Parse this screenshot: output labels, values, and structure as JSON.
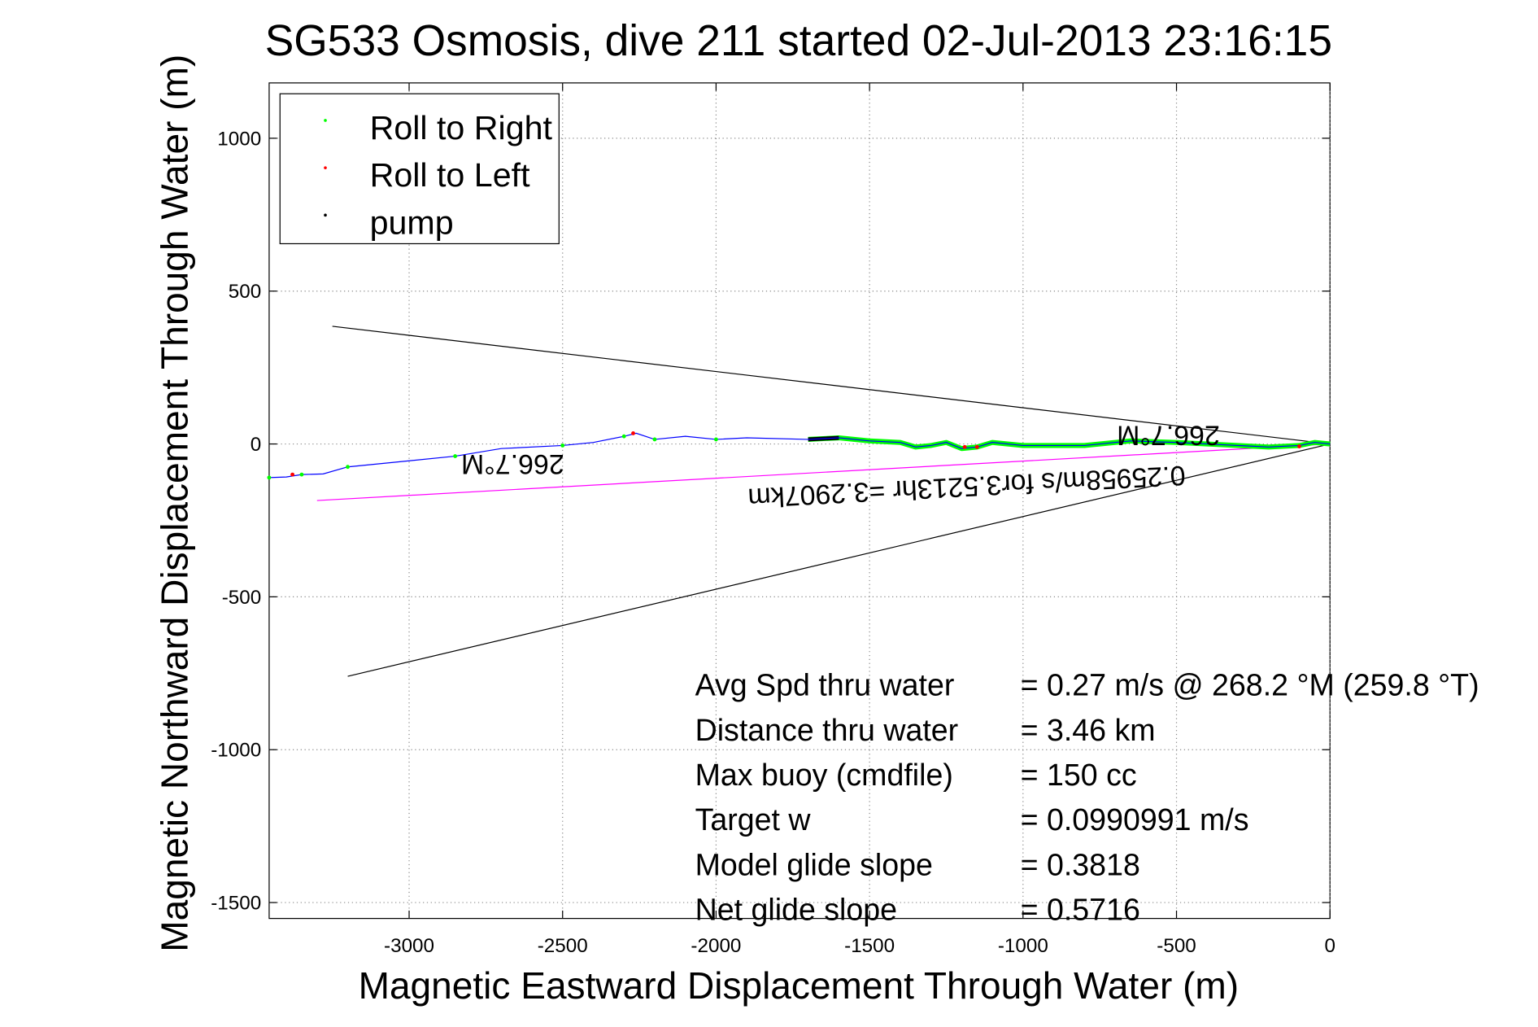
{
  "chart_data": {
    "type": "line",
    "title": "SG533 Osmosis, dive 211 started 02-Jul-2013 23:16:15",
    "xlabel": "Magnetic Eastward Displacement Through Water (m)",
    "ylabel": "Magnetic Northward Displacement Through Water (m)",
    "xlim": [
      -3456,
      0
    ],
    "ylim": [
      -1552,
      1181
    ],
    "grid": true,
    "xticks": [
      -3000,
      -2500,
      -2000,
      -1500,
      -1000,
      -500,
      0
    ],
    "yticks": [
      1000,
      500,
      0,
      -500,
      -1000,
      -1500
    ],
    "xtick_labels": [
      "-3000",
      "-2500",
      "-2000",
      "-1500",
      "-1000",
      "-500",
      "0"
    ],
    "ytick_labels": [
      "1000",
      "500",
      "0",
      "-500",
      "-1000",
      "-1500"
    ],
    "legend": {
      "placement": "top-left",
      "entries": [
        {
          "label": "Roll to Right",
          "color": "#00ff00"
        },
        {
          "label": "Roll to Left",
          "color": "#ff0000"
        },
        {
          "label": "pump",
          "color": "#000000"
        }
      ]
    },
    "track": {
      "name": "track",
      "color": "#0000ff",
      "x": [
        -3456,
        -3400,
        -3350,
        -3280,
        -3200,
        -3000,
        -2850,
        -2700,
        -2500,
        -2400,
        -2300,
        -2260,
        -2200,
        -2100,
        -2000,
        -1900,
        -1700,
        -1600,
        -1500,
        -1400,
        -1350,
        -1300,
        -1250,
        -1200,
        -1150,
        -1100,
        -1000,
        -800,
        -650,
        -500,
        -300,
        -200,
        -100,
        -50,
        0
      ],
      "y": [
        -110,
        -108,
        -100,
        -98,
        -75,
        -55,
        -40,
        -15,
        -5,
        5,
        25,
        35,
        15,
        25,
        15,
        20,
        15,
        20,
        10,
        5,
        -10,
        -5,
        5,
        -15,
        -10,
        5,
        -5,
        -5,
        10,
        5,
        -5,
        -10,
        -5,
        5,
        0
      ]
    },
    "roll_right_range": [
      -1700,
      0
    ],
    "pump_range": [
      -1700,
      -1640
    ],
    "roll_left_points": {
      "x": [
        -3380,
        -2270,
        -1190,
        -1150,
        -100
      ],
      "y": [
        -100,
        35,
        -10,
        -10,
        -8
      ]
    },
    "lines": [
      {
        "name": "heading-bound-upper",
        "color": "#000000",
        "x": [
          -3250,
          0
        ],
        "y": [
          385,
          0
        ]
      },
      {
        "name": "heading-bound-lower",
        "color": "#000000",
        "x": [
          -3200,
          0
        ],
        "y": [
          -760,
          0
        ]
      },
      {
        "name": "current-vector",
        "color": "#ff00ff",
        "x": [
          -3300,
          0
        ],
        "y": [
          -185,
          0
        ]
      }
    ],
    "annotations": {
      "heading_upper": "266.7°M",
      "heading_left": "266.7°M",
      "current": "0.25958m/s for3.5213hr =3.2907km"
    },
    "stats": [
      {
        "label": "Avg Spd thru water",
        "value": "=  0.27 m/s @ 268.2 °M (259.8 °T)"
      },
      {
        "label": "Distance thru water",
        "value": "=  3.46 km"
      },
      {
        "label": "Max buoy (cmdfile)",
        "value": "= 150 cc"
      },
      {
        "label": "Target w",
        "value": "= 0.0990991 m/s"
      },
      {
        "label": "Model glide slope",
        "value": "= 0.3818"
      },
      {
        "label": "Net glide slope",
        "value": "= 0.5716"
      }
    ]
  }
}
